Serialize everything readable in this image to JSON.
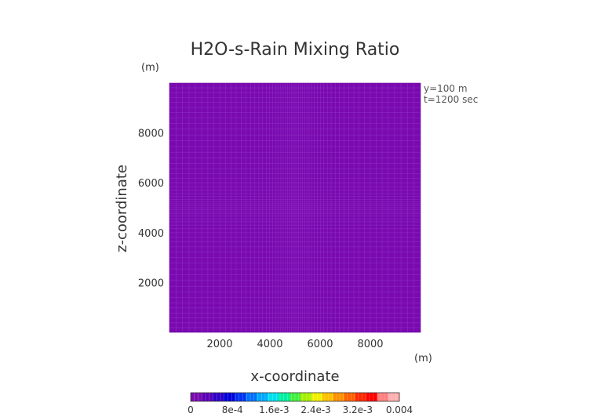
{
  "chart_data": {
    "type": "heatmap",
    "title": "H2O-s-Rain Mixing Ratio",
    "xlabel": "x-coordinate",
    "ylabel": "z-coordinate",
    "x_unit": "(m)",
    "y_unit": "(m)",
    "annotations": [
      "y=100 m",
      "t=1200 sec"
    ],
    "xlim": [
      0,
      10000
    ],
    "ylim": [
      0,
      10000
    ],
    "x_ticks": [
      2000,
      4000,
      6000,
      8000
    ],
    "y_ticks": [
      2000,
      4000,
      6000,
      8000
    ],
    "field_value": 0,
    "field_color": "#7a0ab0",
    "grid_line_color": "#a04ad0",
    "colorbar": {
      "min": 0,
      "max": 0.004,
      "tick_values": [
        0,
        0.0008,
        0.0016,
        0.0024,
        0.0032,
        0.004
      ],
      "tick_labels": [
        "0",
        "8e-4",
        "1.6e-3",
        "2.4e-3",
        "3.2e-3",
        "0.004"
      ],
      "colors": [
        "#7a0ab0",
        "#5a00b8",
        "#2a00c8",
        "#0000d8",
        "#0030f0",
        "#0070ff",
        "#00a8ff",
        "#00e0f0",
        "#00f0a0",
        "#40f040",
        "#a8f000",
        "#f0f000",
        "#ffc000",
        "#ff9000",
        "#ff6000",
        "#ff2800",
        "#ff0000",
        "#ff8080",
        "#ffb0b0"
      ]
    }
  }
}
